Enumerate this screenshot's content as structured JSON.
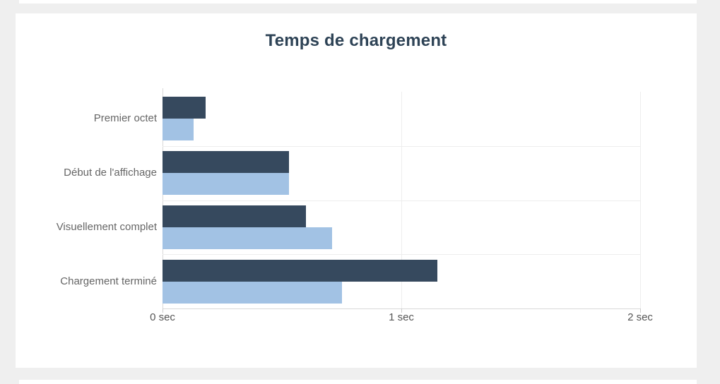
{
  "page": {
    "background_color": "#efefef",
    "card_color": "#ffffff"
  },
  "chart_data": {
    "type": "bar",
    "orientation": "horizontal",
    "title": "Temps de chargement",
    "title_color": "#2e4356",
    "categories": [
      "Premier octet",
      "Début de l'affichage",
      "Visuellement complet",
      "Chargement terminé"
    ],
    "series": [
      {
        "name": "serie-bleu-fonce",
        "color": "#36495e",
        "values": [
          0.18,
          0.53,
          0.6,
          1.15
        ]
      },
      {
        "name": "serie-bleu-clair",
        "color": "#a2c2e4",
        "values": [
          0.13,
          0.53,
          0.71,
          0.75
        ]
      }
    ],
    "xlabel": "",
    "ylabel": "",
    "x_ticks": [
      0,
      1,
      2
    ],
    "x_tick_labels": [
      "0 sec",
      "1 sec",
      "2 sec"
    ],
    "xlim": [
      0,
      2
    ],
    "unit": "sec",
    "legend": "none",
    "grid": true
  }
}
